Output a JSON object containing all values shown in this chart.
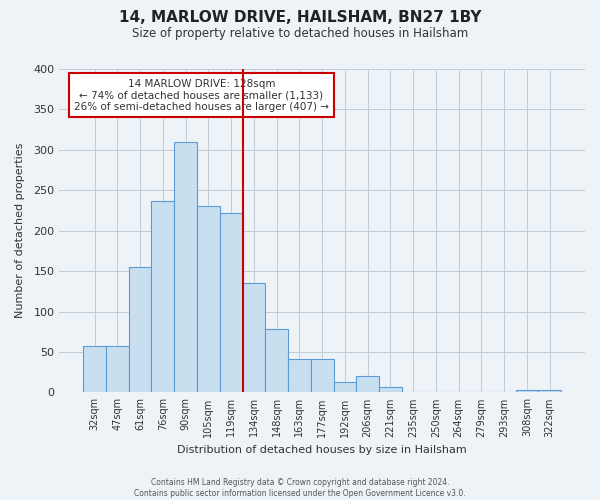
{
  "title": "14, MARLOW DRIVE, HAILSHAM, BN27 1BY",
  "subtitle": "Size of property relative to detached houses in Hailsham",
  "xlabel": "Distribution of detached houses by size in Hailsham",
  "ylabel": "Number of detached properties",
  "bar_labels": [
    "32sqm",
    "47sqm",
    "61sqm",
    "76sqm",
    "90sqm",
    "105sqm",
    "119sqm",
    "134sqm",
    "148sqm",
    "163sqm",
    "177sqm",
    "192sqm",
    "206sqm",
    "221sqm",
    "235sqm",
    "250sqm",
    "264sqm",
    "279sqm",
    "293sqm",
    "308sqm",
    "322sqm"
  ],
  "bar_values": [
    57,
    57,
    155,
    237,
    310,
    230,
    222,
    135,
    78,
    41,
    41,
    13,
    20,
    7,
    0,
    0,
    0,
    0,
    0,
    3,
    3
  ],
  "bar_color": "#c8dff0",
  "bar_edge_color": "#5b9bd5",
  "vline_x_index": 7,
  "vline_color": "#cc0000",
  "annotation_title": "14 MARLOW DRIVE: 128sqm",
  "annotation_line1": "← 74% of detached houses are smaller (1,133)",
  "annotation_line2": "26% of semi-detached houses are larger (407) →",
  "annotation_box_color": "#ffffff",
  "annotation_box_edge": "#cc0000",
  "ylim": [
    0,
    400
  ],
  "yticks": [
    0,
    50,
    100,
    150,
    200,
    250,
    300,
    350,
    400
  ],
  "footer1": "Contains HM Land Registry data © Crown copyright and database right 2024.",
  "footer2": "Contains public sector information licensed under the Open Government Licence v3.0.",
  "background_color": "#eef3f8",
  "plot_background": "#eef3f8",
  "grid_color": "#c0cdd8"
}
